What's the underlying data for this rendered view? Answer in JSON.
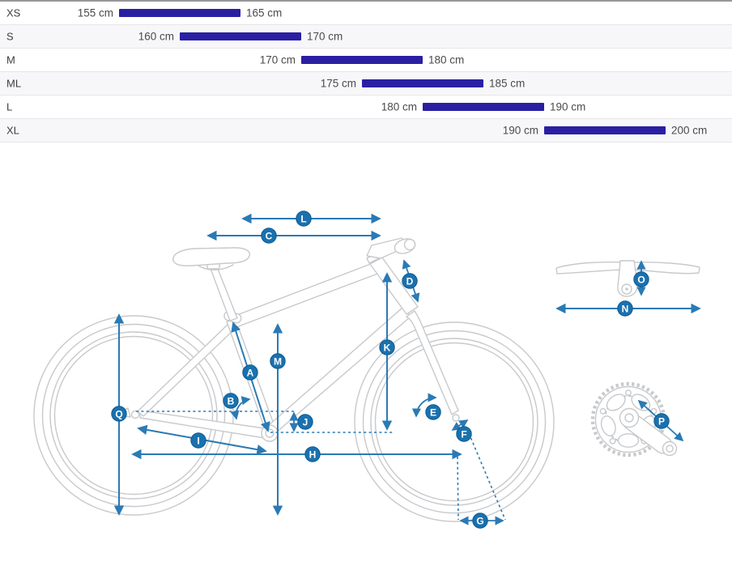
{
  "size_chart": {
    "unit": "cm",
    "rows": [
      {
        "size": "XS",
        "min_cm": 155,
        "max_cm": 165,
        "min_label": "155 cm",
        "max_label": "165 cm"
      },
      {
        "size": "S",
        "min_cm": 160,
        "max_cm": 170,
        "min_label": "160 cm",
        "max_label": "170 cm"
      },
      {
        "size": "M",
        "min_cm": 170,
        "max_cm": 180,
        "min_label": "170 cm",
        "max_label": "180 cm"
      },
      {
        "size": "ML",
        "min_cm": 175,
        "max_cm": 185,
        "min_label": "175 cm",
        "max_label": "185 cm"
      },
      {
        "size": "L",
        "min_cm": 180,
        "max_cm": 190,
        "min_label": "180 cm",
        "max_label": "190 cm"
      },
      {
        "size": "XL",
        "min_cm": 190,
        "max_cm": 200,
        "min_label": "190 cm",
        "max_label": "200 cm"
      }
    ],
    "bar_color": "#2a1fa3"
  },
  "diagram": {
    "arrow_color": "#2a7ab5",
    "badge_color": "#1a71ae",
    "markers": [
      {
        "letter": "A"
      },
      {
        "letter": "B"
      },
      {
        "letter": "C"
      },
      {
        "letter": "D"
      },
      {
        "letter": "E"
      },
      {
        "letter": "F"
      },
      {
        "letter": "G"
      },
      {
        "letter": "H"
      },
      {
        "letter": "I"
      },
      {
        "letter": "J"
      },
      {
        "letter": "K"
      },
      {
        "letter": "L"
      },
      {
        "letter": "M"
      },
      {
        "letter": "N"
      },
      {
        "letter": "O"
      },
      {
        "letter": "P"
      },
      {
        "letter": "Q"
      }
    ]
  }
}
